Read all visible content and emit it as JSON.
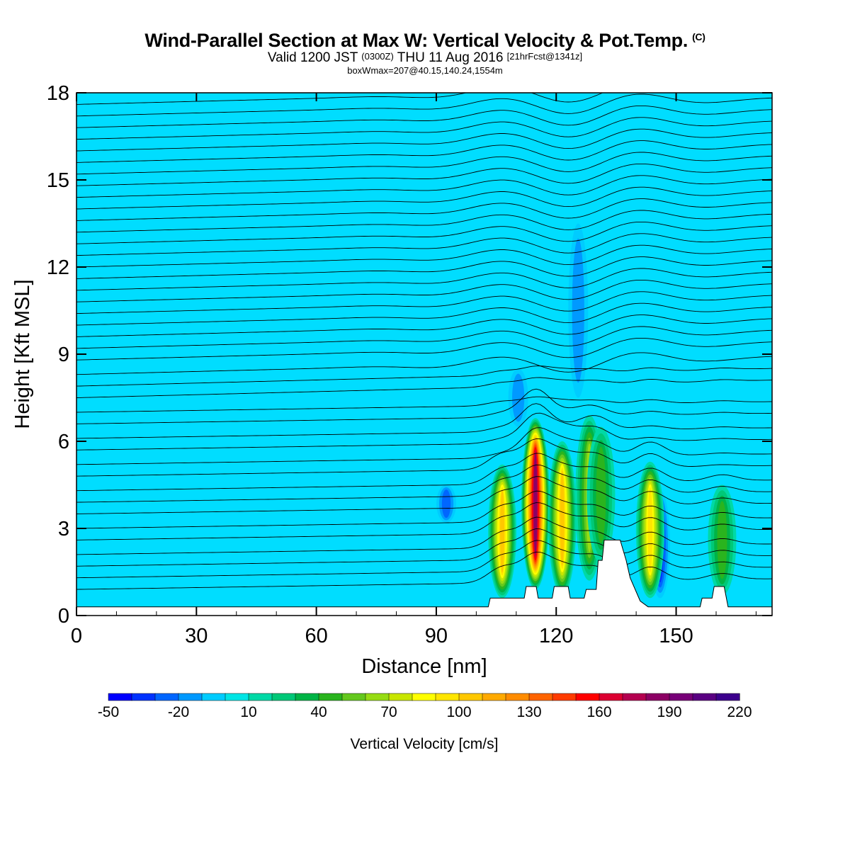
{
  "title": {
    "main": "Wind-Parallel Section at Max W: Vertical Velocity & Pot.Temp.",
    "main_tag": "(C)",
    "valid_a": "Valid 1200 JST",
    "valid_utc": "(0300Z)",
    "valid_b": "THU 11 Aug 2016",
    "forecast": "[21hrFcst@1341z]",
    "box": "boxWmax=207@40.15,140.24,1554m"
  },
  "chart_data": {
    "type": "heatmap",
    "xlabel": "Distance [nm]",
    "ylabel": "Height [Kft MSL]",
    "xlim": [
      0,
      174
    ],
    "ylim": [
      0,
      18
    ],
    "x_ticks": [
      0,
      30,
      60,
      90,
      120,
      150
    ],
    "y_ticks": [
      0,
      3,
      6,
      9,
      12,
      15,
      18
    ],
    "background_color": "#00ddff",
    "colorbar": {
      "label": "Vertical Velocity [cm/s]",
      "tick_labels": [
        -50,
        -20,
        10,
        40,
        70,
        100,
        130,
        160,
        190,
        220
      ],
      "levels": [
        -50,
        -40,
        -30,
        -20,
        -10,
        0,
        10,
        20,
        30,
        40,
        50,
        60,
        70,
        80,
        90,
        100,
        110,
        120,
        130,
        140,
        150,
        160,
        170,
        180,
        190,
        200,
        210,
        220
      ],
      "colors": [
        "#0000ff",
        "#0033ff",
        "#0066ff",
        "#0099ff",
        "#00ccff",
        "#00e5e5",
        "#00d9a6",
        "#00c878",
        "#00b446",
        "#2ab41e",
        "#64c81e",
        "#96dc14",
        "#c8e600",
        "#ffff00",
        "#ffe600",
        "#ffc800",
        "#ffaa00",
        "#ff8c00",
        "#ff6400",
        "#ff3c00",
        "#ff0000",
        "#dc0032",
        "#b40050",
        "#8c0064",
        "#780078",
        "#5a0082",
        "#3c008c"
      ]
    },
    "updrafts": [
      {
        "x": 106.5,
        "bottom": 0.6,
        "top": 5.2,
        "peak_cm_s": 105
      },
      {
        "x": 114.8,
        "bottom": 0.9,
        "top": 6.8,
        "peak_cm_s": 185
      },
      {
        "x": 121.5,
        "bottom": 0.7,
        "top": 6.0,
        "peak_cm_s": 100
      },
      {
        "x": 128.3,
        "bottom": 1.2,
        "top": 6.9,
        "peak_cm_s": 62
      },
      {
        "x": 131.2,
        "bottom": 1.8,
        "top": 6.5,
        "peak_cm_s": 48
      },
      {
        "x": 143.5,
        "bottom": 0.6,
        "top": 5.3,
        "peak_cm_s": 95
      },
      {
        "x": 161.5,
        "bottom": 0.7,
        "top": 4.5,
        "peak_cm_s": 42
      }
    ],
    "downdrafts": [
      {
        "x": 92.5,
        "bottom": 3.2,
        "top": 4.5,
        "peak_cm_s": -38
      },
      {
        "x": 146.0,
        "bottom": 0.6,
        "top": 4.3,
        "peak_cm_s": -45
      },
      {
        "x": 110.5,
        "bottom": 6.5,
        "top": 8.5,
        "peak_cm_s": -25
      },
      {
        "x": 125.5,
        "bottom": 7.5,
        "top": 13.5,
        "peak_cm_s": -22
      }
    ],
    "terrain": [
      [
        0,
        0.3
      ],
      [
        103,
        0.3
      ],
      [
        103.5,
        0.6
      ],
      [
        112,
        0.6
      ],
      [
        112.5,
        1.0
      ],
      [
        115,
        1.0
      ],
      [
        115.5,
        0.6
      ],
      [
        119,
        0.6
      ],
      [
        119.5,
        1.0
      ],
      [
        123,
        1.0
      ],
      [
        123.5,
        0.6
      ],
      [
        127,
        0.6
      ],
      [
        127.5,
        0.9
      ],
      [
        130,
        0.9
      ],
      [
        130.5,
        1.9
      ],
      [
        131.5,
        1.9
      ],
      [
        132,
        2.6
      ],
      [
        136,
        2.6
      ],
      [
        137.5,
        1.9
      ],
      [
        138.5,
        1.3
      ],
      [
        141,
        0.5
      ],
      [
        143,
        0.3
      ],
      [
        156,
        0.3
      ],
      [
        156.5,
        0.6
      ],
      [
        159,
        0.6
      ],
      [
        159.5,
        1.0
      ],
      [
        162,
        1.0
      ],
      [
        163,
        0.3
      ],
      [
        174,
        0.3
      ]
    ],
    "isotherms": {
      "levels_kft": [
        0.9,
        1.3,
        1.7,
        2.1,
        2.6,
        3.0,
        3.5,
        3.9,
        4.3,
        4.8,
        5.2,
        5.7,
        6.1,
        6.6,
        7.0,
        7.5,
        7.9,
        8.3,
        8.8,
        9.2,
        9.6,
        10.0,
        10.4,
        10.8,
        11.2,
        11.6,
        12.0,
        12.4,
        12.8,
        13.2,
        13.6,
        14.0,
        14.4,
        14.8,
        15.2,
        15.6,
        16.0,
        16.4,
        16.8,
        17.2,
        17.6
      ],
      "slope_kft_per_nm": 0.0035
    }
  }
}
